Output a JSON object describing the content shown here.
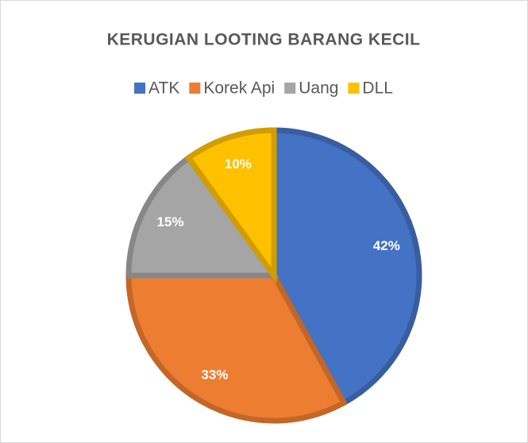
{
  "chart_data": {
    "type": "pie",
    "title": "KERUGIAN LOOTING BARANG KECIL",
    "categories": [
      "ATK",
      "Korek Api",
      "Uang",
      "DLL"
    ],
    "values": [
      42,
      33,
      15,
      10
    ],
    "value_labels": [
      "42%",
      "33%",
      "15%",
      "10%"
    ],
    "colors": [
      "#4472c4",
      "#ed7d31",
      "#a5a5a5",
      "#ffc000"
    ],
    "legend": "top"
  }
}
